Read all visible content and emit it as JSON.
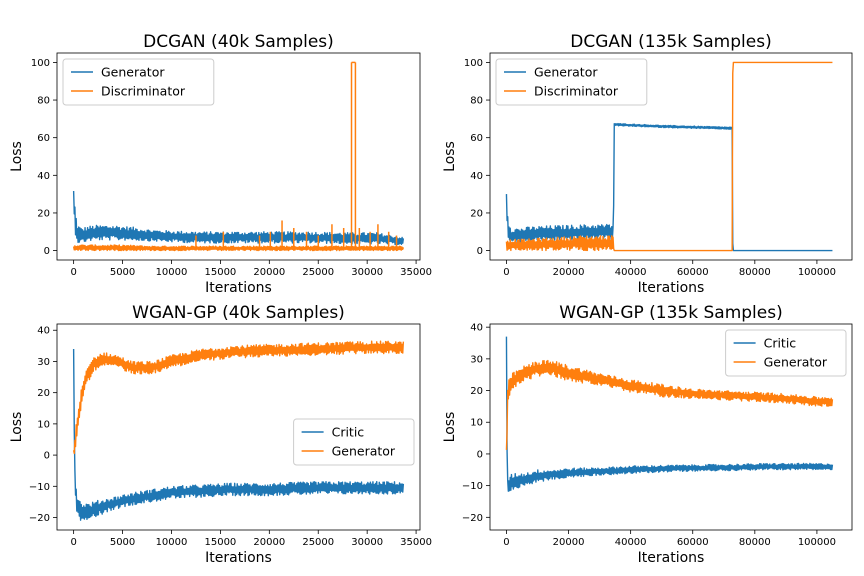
{
  "chart_data": [
    {
      "type": "line",
      "title": "DCGAN (40k Samples)",
      "xlabel": "Iterations",
      "ylabel": "Loss",
      "xlim": [
        -1700,
        35400
      ],
      "ylim": [
        -5,
        105
      ],
      "xticks": [
        0,
        5000,
        10000,
        15000,
        20000,
        25000,
        30000,
        35000
      ],
      "yticks": [
        0,
        20,
        40,
        60,
        80,
        100
      ],
      "legend": "top-left",
      "series": [
        {
          "name": "Generator",
          "color": "#1f77b4",
          "x": [
            0,
            200,
            400,
            800,
            1500,
            2500,
            4000,
            6000,
            8000,
            10000,
            13000,
            16000,
            20000,
            24000,
            28000,
            31000,
            33700
          ],
          "y": [
            27,
            14,
            9,
            8,
            9,
            9.5,
            9.5,
            9,
            8,
            7.5,
            7,
            7,
            7,
            7,
            6.5,
            6.5,
            5
          ],
          "band": [
            6,
            6,
            5,
            4,
            4,
            4,
            4,
            3.5,
            3,
            3,
            3,
            3,
            3,
            3,
            3,
            3,
            2
          ]
        },
        {
          "name": "Discriminator",
          "color": "#ff7f0e",
          "x": [
            0,
            500,
            2000,
            5000,
            8000,
            11000,
            14000,
            17000,
            20000,
            23000,
            26000,
            28500,
            29000,
            31000,
            33700
          ],
          "y": [
            1.5,
            1.5,
            1.5,
            1.5,
            1.2,
            1.2,
            1.2,
            1.2,
            1.2,
            1.2,
            1.2,
            1.2,
            1.2,
            1.2,
            1.2
          ],
          "band": [
            1.5,
            1.5,
            1.5,
            1.5,
            1.2,
            1.2,
            1.2,
            1.2,
            1.2,
            1.2,
            1.2,
            1.2,
            1.2,
            1.2,
            1.2
          ],
          "spikes": [
            [
              12500,
              8
            ],
            [
              15300,
              10
            ],
            [
              19000,
              8
            ],
            [
              20100,
              10
            ],
            [
              21300,
              16
            ],
            [
              22500,
              12
            ],
            [
              23800,
              10
            ],
            [
              25000,
              8
            ],
            [
              26400,
              14
            ],
            [
              27600,
              12
            ],
            [
              28400,
              100
            ],
            [
              28800,
              100
            ],
            [
              29200,
              12
            ],
            [
              30300,
              10
            ],
            [
              31100,
              14
            ],
            [
              32200,
              10
            ],
            [
              33000,
              8
            ]
          ]
        }
      ]
    },
    {
      "type": "line",
      "title": "DCGAN (135k Samples)",
      "xlabel": "Iterations",
      "ylabel": "Loss",
      "xlim": [
        -5300,
        111300
      ],
      "ylim": [
        -5,
        105
      ],
      "xticks": [
        0,
        20000,
        40000,
        60000,
        80000,
        100000
      ],
      "yticks": [
        0,
        20,
        40,
        60,
        80,
        100
      ],
      "legend": "top-left",
      "series": [
        {
          "name": "Generator",
          "color": "#1f77b4",
          "x": [
            0,
            500,
            1500,
            4000,
            10000,
            20000,
            30000,
            34500,
            34600,
            50000,
            72800,
            72900,
            105000
          ],
          "y": [
            27,
            12,
            8,
            8,
            9,
            9.5,
            10,
            10,
            67,
            66,
            65,
            0,
            0
          ],
          "band": [
            6,
            5,
            4,
            4,
            4,
            4,
            4,
            4,
            0.6,
            0.6,
            0.6,
            0,
            0
          ]
        },
        {
          "name": "Discriminator",
          "color": "#ff7f0e",
          "x": [
            0,
            5000,
            15000,
            25000,
            34500,
            34600,
            72800,
            72900,
            105000
          ],
          "y": [
            3,
            3,
            3.5,
            4,
            4,
            0,
            0,
            100,
            100
          ],
          "band": [
            3,
            3,
            3.5,
            4,
            4,
            0,
            0,
            0,
            0
          ]
        }
      ]
    },
    {
      "type": "line",
      "title": "WGAN-GP (40k Samples)",
      "xlabel": "Iterations",
      "ylabel": "Loss",
      "xlim": [
        -1700,
        35400
      ],
      "ylim": [
        -24,
        42
      ],
      "xticks": [
        0,
        5000,
        10000,
        15000,
        20000,
        25000,
        30000,
        35000
      ],
      "yticks": [
        -20,
        -10,
        0,
        10,
        20,
        30,
        40
      ],
      "legend": "center-right",
      "series": [
        {
          "name": "Critic",
          "color": "#1f77b4",
          "x": [
            0,
            100,
            300,
            700,
            1500,
            2500,
            4000,
            6000,
            8000,
            10000,
            13000,
            16000,
            20000,
            25000,
            30000,
            33700
          ],
          "y": [
            34,
            -5,
            -15,
            -18,
            -18,
            -17,
            -15.5,
            -14,
            -13,
            -12,
            -11.5,
            -11,
            -11,
            -10.5,
            -10.5,
            -10.5
          ],
          "band": [
            0,
            3,
            3.5,
            3,
            2.5,
            2.5,
            2,
            2,
            2,
            2,
            2,
            2,
            2,
            2,
            2,
            2
          ]
        },
        {
          "name": "Generator",
          "color": "#ff7f0e",
          "x": [
            0,
            300,
            700,
            1200,
            2000,
            3000,
            4500,
            6000,
            8000,
            10000,
            13000,
            16000,
            20000,
            25000,
            30000,
            33700
          ],
          "y": [
            0,
            8,
            17,
            24,
            29,
            31,
            30,
            28,
            28,
            30,
            32,
            33,
            33.5,
            34,
            34.5,
            34.5
          ],
          "band": [
            2,
            3,
            3,
            2.5,
            2.5,
            2,
            2,
            2,
            2,
            2,
            2,
            2,
            2,
            2,
            2,
            2
          ]
        }
      ]
    },
    {
      "type": "line",
      "title": "WGAN-GP (135k Samples)",
      "xlabel": "Iterations",
      "ylabel": "Loss",
      "xlim": [
        -5300,
        111300
      ],
      "ylim": [
        -24,
        41
      ],
      "xticks": [
        0,
        20000,
        40000,
        60000,
        80000,
        100000
      ],
      "yticks": [
        -20,
        -10,
        0,
        10,
        20,
        30,
        40
      ],
      "legend": "top-right",
      "series": [
        {
          "name": "Critic",
          "color": "#1f77b4",
          "x": [
            0,
            300,
            700,
            1500,
            3000,
            6000,
            10000,
            15000,
            20000,
            30000,
            40000,
            55000,
            70000,
            85000,
            105000
          ],
          "y": [
            37,
            -12,
            -10,
            -9,
            -8.5,
            -8,
            -7,
            -6.5,
            -6,
            -5.5,
            -5,
            -4.5,
            -4.3,
            -4,
            -4
          ],
          "band": [
            0,
            5,
            3,
            2.5,
            2.5,
            2,
            2,
            1.5,
            1.5,
            1.2,
            1.2,
            1,
            1,
            1,
            1
          ]
        },
        {
          "name": "Generator",
          "color": "#ff7f0e",
          "x": [
            0,
            300,
            800,
            2000,
            5000,
            10000,
            15000,
            20000,
            30000,
            40000,
            50000,
            60000,
            70000,
            80000,
            90000,
            100000,
            105000
          ],
          "y": [
            -1,
            15,
            21,
            23,
            25,
            27,
            27,
            25.5,
            23.5,
            21.5,
            20,
            19,
            18.5,
            18,
            17.5,
            16.5,
            16.5
          ],
          "band": [
            3,
            4,
            3,
            2.5,
            2.5,
            2.5,
            2.5,
            2.5,
            2,
            2,
            2,
            1.5,
            1.5,
            1.5,
            1.5,
            1.5,
            1.5
          ]
        }
      ]
    }
  ]
}
